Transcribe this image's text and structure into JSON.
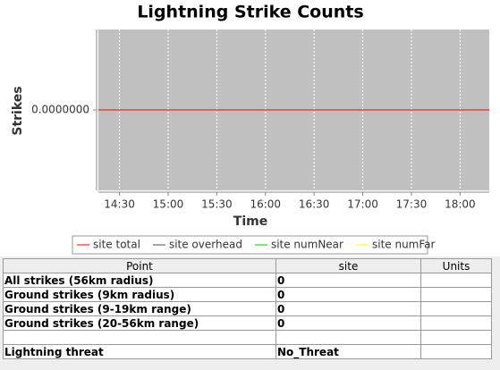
{
  "chart_data": {
    "type": "line",
    "title": "Lightning Strike Counts",
    "x_label": "Time",
    "y_label": "Strikes",
    "x": [
      "14:17",
      "18:18"
    ],
    "series": [
      {
        "name": "site total",
        "color": "#ff0000",
        "values": [
          0,
          0
        ]
      },
      {
        "name": "site overhead",
        "color": "#4a4a5a",
        "values": [
          0,
          0
        ]
      },
      {
        "name": "site numNear",
        "color": "#00cc00",
        "values": [
          0,
          0
        ]
      },
      {
        "name": "site numFar",
        "color": "#ffff00",
        "values": [
          0,
          0
        ]
      }
    ],
    "xlim": [
      "14:17",
      "18:18"
    ],
    "xticks": [
      "14:30",
      "15:00",
      "15:30",
      "16:00",
      "16:30",
      "17:00",
      "17:30",
      "18:00"
    ],
    "ylim": [
      -1,
      1
    ],
    "yticks": [
      {
        "value": 0,
        "label": "0.0000000"
      }
    ],
    "grid": true,
    "legend": "bottom"
  },
  "table": {
    "columns": [
      "Point",
      "site",
      "Units"
    ],
    "rows": [
      [
        "All strikes (56km radius)",
        0
      ],
      [
        "Ground strikes (9km radius)",
        0
      ],
      [
        "Ground strikes (9-19km range)",
        0
      ],
      [
        "Ground strikes (20-56km range)",
        0
      ],
      null,
      [
        "Lightning threat",
        "No_Threat"
      ]
    ]
  }
}
